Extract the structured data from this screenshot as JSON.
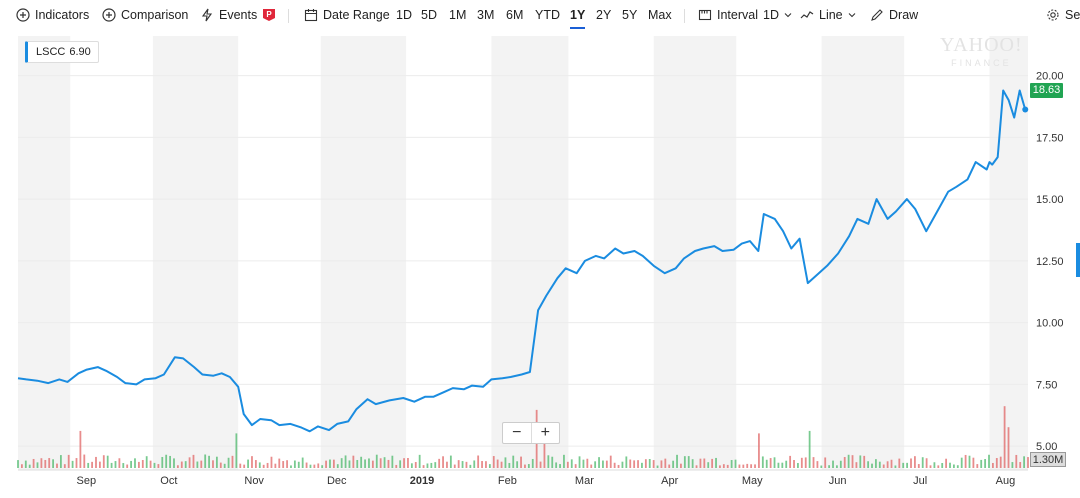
{
  "toolbar": {
    "indicators": "Indicators",
    "comparison": "Comparison",
    "events": "Events",
    "date_range": "Date Range",
    "ranges": [
      "1D",
      "5D",
      "1M",
      "3M",
      "6M",
      "YTD",
      "1Y",
      "2Y",
      "5Y",
      "Max"
    ],
    "active_range": "1Y",
    "interval": "Interval",
    "interval_value": "1D",
    "line": "Line",
    "draw": "Draw",
    "settings": "Set"
  },
  "watermark": {
    "top": "YAHOO!",
    "bottom": "FINANCE"
  },
  "ticker_badge": {
    "symbol": "LSCC",
    "value": "6.90"
  },
  "price_tag": "18.63",
  "volume_tag": "1.30M",
  "zoom": {
    "minus": "−",
    "plus": "+"
  },
  "colors": {
    "line": "#1a8ce0",
    "up_volume": "#4cb86b",
    "down_volume": "#e06666",
    "price_tag": "#21a453",
    "shade": "#f3f3f3"
  },
  "chart_data": {
    "type": "line",
    "ticker": "LSCC",
    "y_ticks": [
      "20.00",
      "17.50",
      "15.00",
      "12.50",
      "10.00",
      "7.50",
      "5.00"
    ],
    "ylim": [
      4.6,
      21.2
    ],
    "x_ticks": [
      "Sep",
      "Oct",
      "Nov",
      "Dec",
      "2019",
      "Feb",
      "Mar",
      "Apr",
      "May",
      "Jun",
      "Jul",
      "Aug"
    ],
    "x_tick_dates": [
      "2018-09-01",
      "2018-10-01",
      "2018-11-01",
      "2018-12-01",
      "2019-01-01",
      "2019-02-01",
      "2019-03-01",
      "2019-04-01",
      "2019-05-01",
      "2019-06-01",
      "2019-07-01",
      "2019-08-01"
    ],
    "x_range": [
      "2018-08-13",
      "2019-08-15"
    ],
    "series": [
      {
        "values": [
          [
            "2018-08-13",
            7.75
          ],
          [
            "2018-08-16",
            7.7
          ],
          [
            "2018-08-20",
            7.65
          ],
          [
            "2018-08-24",
            7.55
          ],
          [
            "2018-08-28",
            7.7
          ],
          [
            "2018-08-31",
            7.6
          ],
          [
            "2018-09-04",
            7.95
          ],
          [
            "2018-09-07",
            8.1
          ],
          [
            "2018-09-11",
            8.2
          ],
          [
            "2018-09-14",
            8.05
          ],
          [
            "2018-09-18",
            7.8
          ],
          [
            "2018-09-21",
            7.55
          ],
          [
            "2018-09-25",
            7.5
          ],
          [
            "2018-09-28",
            7.7
          ],
          [
            "2018-10-02",
            7.75
          ],
          [
            "2018-10-05",
            7.9
          ],
          [
            "2018-10-09",
            8.6
          ],
          [
            "2018-10-12",
            8.55
          ],
          [
            "2018-10-16",
            8.2
          ],
          [
            "2018-10-19",
            7.9
          ],
          [
            "2018-10-23",
            7.85
          ],
          [
            "2018-10-26",
            7.95
          ],
          [
            "2018-10-29",
            7.8
          ],
          [
            "2018-11-01",
            7.4
          ],
          [
            "2018-11-03",
            6.3
          ],
          [
            "2018-11-06",
            5.85
          ],
          [
            "2018-11-09",
            6.1
          ],
          [
            "2018-11-13",
            6.05
          ],
          [
            "2018-11-16",
            5.85
          ],
          [
            "2018-11-20",
            5.9
          ],
          [
            "2018-11-24",
            5.75
          ],
          [
            "2018-11-27",
            5.6
          ],
          [
            "2018-11-30",
            5.8
          ],
          [
            "2018-12-04",
            5.65
          ],
          [
            "2018-12-07",
            5.9
          ],
          [
            "2018-12-11",
            6.0
          ],
          [
            "2018-12-14",
            6.5
          ],
          [
            "2018-12-18",
            6.9
          ],
          [
            "2018-12-21",
            6.7
          ],
          [
            "2018-12-26",
            6.85
          ],
          [
            "2018-12-31",
            6.95
          ],
          [
            "2019-01-04",
            6.8
          ],
          [
            "2019-01-08",
            7.0
          ],
          [
            "2019-01-11",
            7.0
          ],
          [
            "2019-01-15",
            7.2
          ],
          [
            "2019-01-18",
            7.35
          ],
          [
            "2019-01-22",
            7.3
          ],
          [
            "2019-01-25",
            7.45
          ],
          [
            "2019-01-29",
            7.4
          ],
          [
            "2019-02-01",
            7.7
          ],
          [
            "2019-02-05",
            7.75
          ],
          [
            "2019-02-08",
            7.8
          ],
          [
            "2019-02-12",
            7.9
          ],
          [
            "2019-02-15",
            8.0
          ],
          [
            "2019-02-18",
            10.5
          ],
          [
            "2019-02-21",
            11.1
          ],
          [
            "2019-02-25",
            11.8
          ],
          [
            "2019-02-28",
            12.2
          ],
          [
            "2019-03-04",
            12.0
          ],
          [
            "2019-03-07",
            12.5
          ],
          [
            "2019-03-11",
            12.7
          ],
          [
            "2019-03-14",
            12.6
          ],
          [
            "2019-03-18",
            13.0
          ],
          [
            "2019-03-21",
            12.8
          ],
          [
            "2019-03-25",
            12.9
          ],
          [
            "2019-03-28",
            12.7
          ],
          [
            "2019-04-01",
            12.3
          ],
          [
            "2019-04-05",
            12.0
          ],
          [
            "2019-04-09",
            12.2
          ],
          [
            "2019-04-12",
            12.6
          ],
          [
            "2019-04-16",
            12.9
          ],
          [
            "2019-04-19",
            13.0
          ],
          [
            "2019-04-23",
            13.1
          ],
          [
            "2019-04-26",
            12.9
          ],
          [
            "2019-04-30",
            12.95
          ],
          [
            "2019-05-03",
            13.2
          ],
          [
            "2019-05-06",
            13.3
          ],
          [
            "2019-05-09",
            12.9
          ],
          [
            "2019-05-11",
            14.4
          ],
          [
            "2019-05-15",
            14.2
          ],
          [
            "2019-05-18",
            13.7
          ],
          [
            "2019-05-21",
            13.0
          ],
          [
            "2019-05-24",
            13.4
          ],
          [
            "2019-05-27",
            11.6
          ],
          [
            "2019-05-31",
            12.0
          ],
          [
            "2019-06-03",
            12.3
          ],
          [
            "2019-06-07",
            12.8
          ],
          [
            "2019-06-11",
            13.5
          ],
          [
            "2019-06-14",
            14.2
          ],
          [
            "2019-06-18",
            14.0
          ],
          [
            "2019-06-21",
            15.0
          ],
          [
            "2019-06-25",
            14.2
          ],
          [
            "2019-06-28",
            14.5
          ],
          [
            "2019-07-02",
            15.0
          ],
          [
            "2019-07-05",
            14.6
          ],
          [
            "2019-07-09",
            13.7
          ],
          [
            "2019-07-13",
            14.5
          ],
          [
            "2019-07-17",
            15.3
          ],
          [
            "2019-07-20",
            15.5
          ],
          [
            "2019-07-24",
            15.8
          ],
          [
            "2019-07-27",
            16.5
          ],
          [
            "2019-07-31",
            16.2
          ],
          [
            "2019-08-01",
            16.5
          ],
          [
            "2019-08-02",
            16.4
          ],
          [
            "2019-08-04",
            16.7
          ],
          [
            "2019-08-06",
            19.4
          ],
          [
            "2019-08-08",
            19.0
          ],
          [
            "2019-08-10",
            18.3
          ],
          [
            "2019-08-12",
            19.4
          ],
          [
            "2019-08-14",
            18.63
          ]
        ]
      }
    ],
    "volume_label": "1.30M",
    "volume_ylim": [
      0,
      5.5
    ],
    "volume_days": 260,
    "volume_spikes": [
      [
        "2018-09-04",
        3.0
      ],
      [
        "2018-11-01",
        2.8
      ],
      [
        "2019-02-18",
        4.7
      ],
      [
        "2019-02-20",
        3.3
      ],
      [
        "2019-05-09",
        2.8
      ],
      [
        "2019-05-27",
        3.0
      ],
      [
        "2019-08-06",
        5.0
      ],
      [
        "2019-08-08",
        3.3
      ]
    ]
  }
}
